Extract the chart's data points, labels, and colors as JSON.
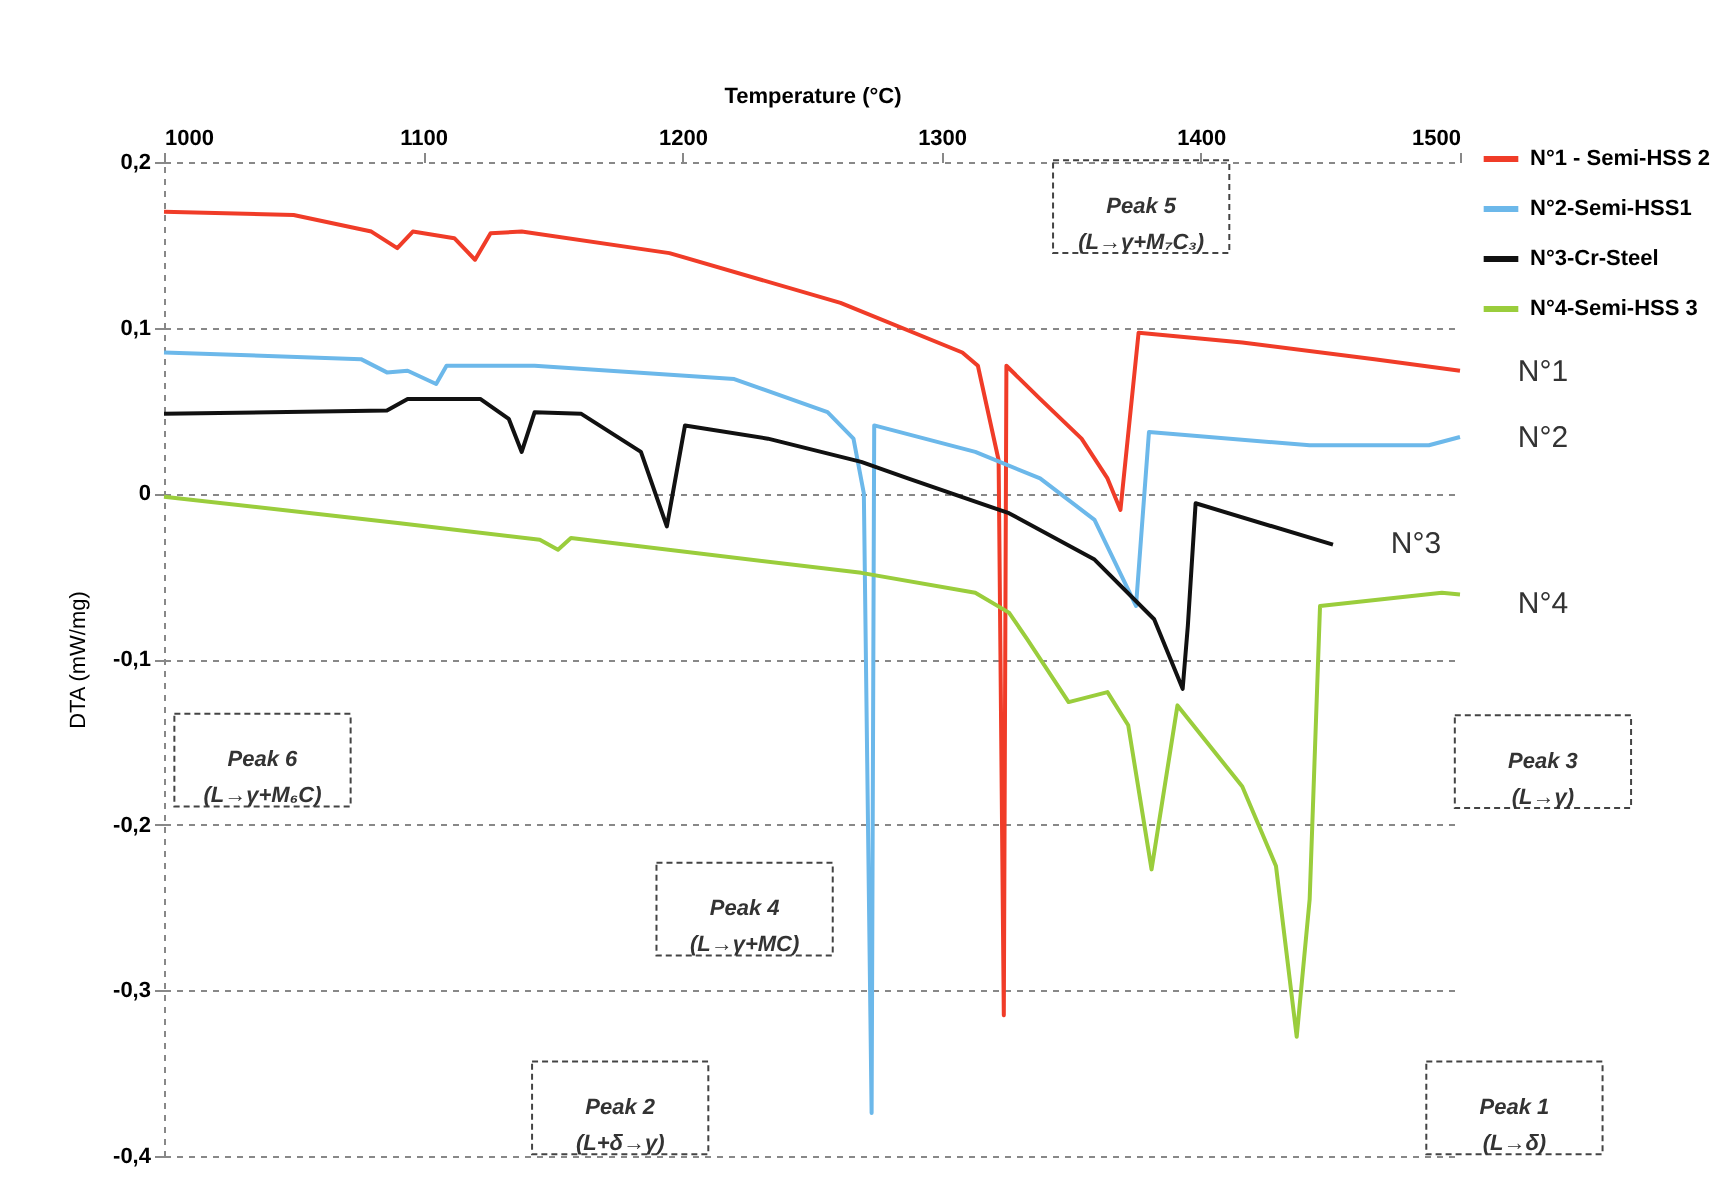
{
  "chart_data": {
    "type": "line",
    "xlabel": "Temperature (°C)",
    "ylabel": "DTA (mW/mg)",
    "xlim": [
      1000,
      1500
    ],
    "xticks": [
      1000,
      1100,
      1200,
      1300,
      1400,
      1500
    ],
    "ylim": [
      -0.4,
      0.2
    ],
    "yticks": [
      {
        "value": -0.4,
        "label": "-0,4"
      },
      {
        "value": -0.3,
        "label": "-0,3"
      },
      {
        "value": -0.2,
        "label": "-0,2"
      },
      {
        "value": -0.1,
        "label": "-0,1"
      },
      {
        "value": 0,
        "label": "0"
      },
      {
        "value": 0.1,
        "label": "0,1"
      },
      {
        "value": 0.2,
        "label": "0,2"
      }
    ],
    "grid": "y",
    "legend": "top right",
    "marker": "none",
    "line_style": "solid",
    "series": [
      {
        "name": "N°1 - Semi-HSS 2",
        "color": "#f03c28",
        "x": [
          1000,
          1050,
          1080,
          1090,
          1096,
          1112,
          1120,
          1126,
          1138,
          1195,
          1261,
          1308,
          1314,
          1322,
          1324,
          1325,
          1338,
          1354,
          1364,
          1369,
          1376,
          1416,
          1467,
          1500
        ],
        "values": [
          0.17,
          0.168,
          0.158,
          0.148,
          0.158,
          0.154,
          0.141,
          0.157,
          0.158,
          0.145,
          0.115,
          0.085,
          0.077,
          0.02,
          -0.315,
          0.077,
          0.057,
          0.033,
          0.009,
          -0.01,
          0.097,
          0.091,
          0.081,
          0.074
        ]
      },
      {
        "name": "N°2-Semi-HSS1",
        "color": "#6cb8ea",
        "x": [
          1000,
          1076,
          1086,
          1094,
          1105,
          1109,
          1143,
          1220,
          1256,
          1266,
          1270,
          1273,
          1274,
          1313,
          1338,
          1359,
          1375,
          1380,
          1442,
          1488,
          1500
        ],
        "values": [
          0.085,
          0.081,
          0.073,
          0.074,
          0.066,
          0.077,
          0.077,
          0.069,
          0.049,
          0.033,
          0.0,
          -0.374,
          0.041,
          0.025,
          0.009,
          -0.016,
          -0.068,
          0.037,
          0.029,
          0.029,
          0.034
        ]
      },
      {
        "name": "N°3-Cr-Steel",
        "color": "#111111",
        "x": [
          1000,
          1086,
          1094,
          1122,
          1133,
          1138,
          1143,
          1161,
          1184,
          1194,
          1201,
          1233,
          1269,
          1287,
          1326,
          1359,
          1382,
          1393,
          1395,
          1398,
          1451
        ],
        "values": [
          0.048,
          0.05,
          0.057,
          0.057,
          0.045,
          0.025,
          0.049,
          0.048,
          0.025,
          -0.02,
          0.041,
          0.033,
          0.019,
          0.009,
          -0.012,
          -0.04,
          -0.076,
          -0.118,
          -0.08,
          -0.006,
          -0.031
        ]
      },
      {
        "name": "N°4-Semi-HSS 3",
        "color": "#9acd3c",
        "x": [
          1000,
          1091,
          1145,
          1152,
          1157,
          1269,
          1313,
          1326,
          1333,
          1349,
          1364,
          1372,
          1381,
          1391,
          1416,
          1429,
          1437,
          1442,
          1446,
          1493,
          1500
        ],
        "values": [
          -0.002,
          -0.018,
          -0.028,
          -0.034,
          -0.027,
          -0.048,
          -0.06,
          -0.072,
          -0.088,
          -0.126,
          -0.12,
          -0.14,
          -0.227,
          -0.128,
          -0.177,
          -0.225,
          -0.328,
          -0.245,
          -0.068,
          -0.06,
          -0.061
        ]
      }
    ],
    "annotations": [
      "N°1",
      "N°2",
      "N°3",
      "N°4",
      "Peak 5\n(L→γ+M₇C₃)",
      "Peak 6\n(L→γ+M₆C)",
      "Peak 4\n(L→γ+MC)",
      "Peak 2\n(L+δ→γ)",
      "Peak 3\n(L→γ)",
      "Peak 1\n(L→δ)"
    ]
  }
}
